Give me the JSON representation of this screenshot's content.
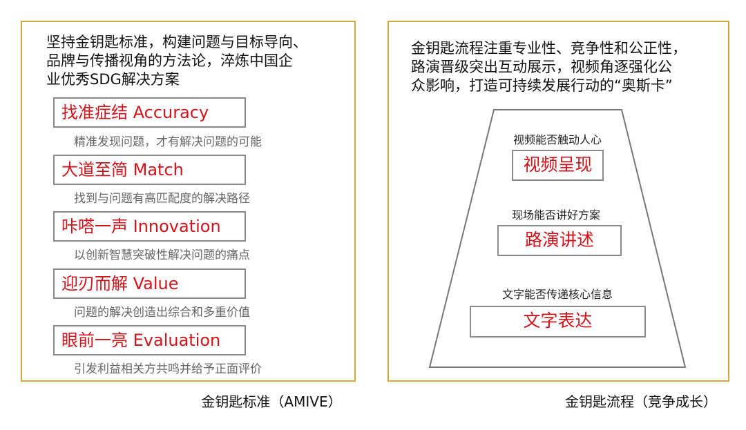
{
  "standard": {
    "intro": [
      "坚持金钥匙标准，构建问题与目标导向、",
      "品牌与传播视角的方法论，淬炼中国企",
      "业优秀SDG解决方案"
    ],
    "items": [
      {
        "title": "找准症结 Accuracy",
        "desc": "精准发现问题，才有解决问题的可能"
      },
      {
        "title": "大道至简 Match",
        "desc": "找到与问题有高匹配度的解决路径"
      },
      {
        "title": "咔嗒一声 Innovation",
        "desc": "以创新智慧突破性解决问题的痛点"
      },
      {
        "title": "迎刃而解 Value",
        "desc": "问题的解决创造出综合和多重价值"
      },
      {
        "title": "眼前一亮 Evaluation",
        "desc": "引发利益相关方共鸣并给予正面评价"
      }
    ],
    "caption": "金钥匙标准（AMIVE）"
  },
  "process": {
    "intro": [
      "金钥匙流程注重专业性、竞争性和公正性，",
      "路演晋级突出互动展示，视频角逐强化公",
      "众影响，打造可持续发展行动的“奥斯卡”"
    ],
    "levels": [
      {
        "question": "视频能否触动人心",
        "stage": "视频呈现"
      },
      {
        "question": "现场能否讲好方案",
        "stage": "路演讲述"
      },
      {
        "question": "文字能否传递核心信息",
        "stage": "文字表达"
      }
    ],
    "caption": "金钥匙流程（竞争成长）"
  },
  "colors": {
    "border": "#d4a93a",
    "accent": "#d0141b"
  }
}
